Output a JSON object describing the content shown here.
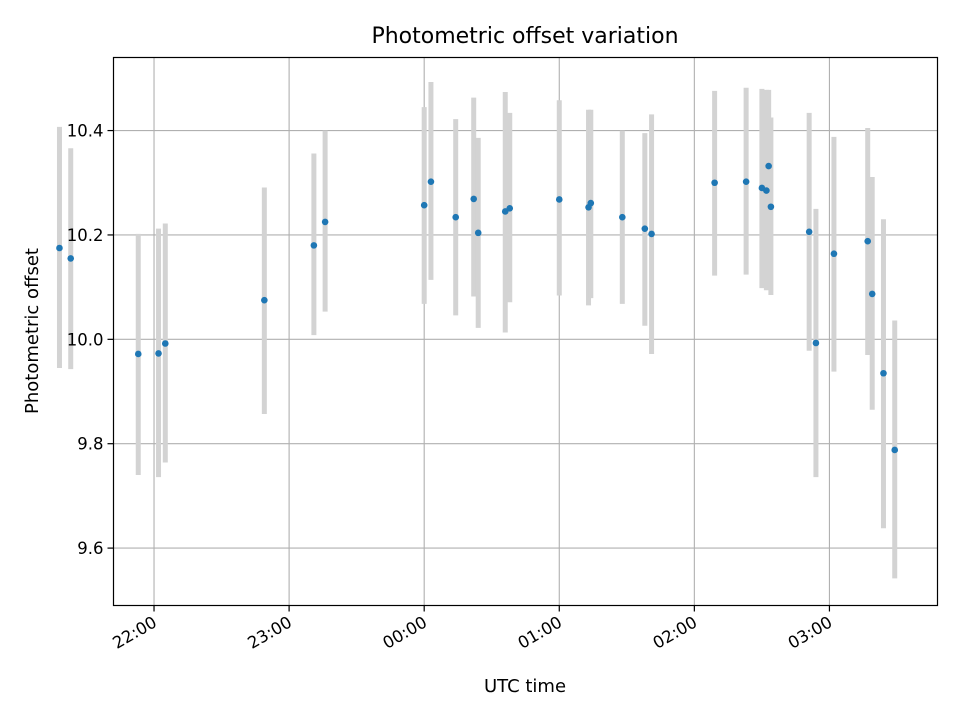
{
  "chart_data": {
    "type": "scatter",
    "title": "Photometric offset variation",
    "xlabel": "UTC time",
    "ylabel": "Photometric offset",
    "x_scale": "time",
    "x_range": [
      "21:42",
      "03:48"
    ],
    "xlim_min": [
      21.7,
      27.8
    ],
    "ylim": [
      9.49,
      10.54
    ],
    "x_ticks": [
      {
        "label": "22:00",
        "value": 22
      },
      {
        "label": "23:00",
        "value": 23
      },
      {
        "label": "00:00",
        "value": 24
      },
      {
        "label": "01:00",
        "value": 25
      },
      {
        "label": "02:00",
        "value": 26
      },
      {
        "label": "03:00",
        "value": 27
      }
    ],
    "y_ticks": [
      {
        "label": "9.6",
        "value": 9.6
      },
      {
        "label": "9.8",
        "value": 9.8
      },
      {
        "label": "10.0",
        "value": 10.0
      },
      {
        "label": "10.2",
        "value": 10.2
      },
      {
        "label": "10.4",
        "value": 10.4
      }
    ],
    "grid": true,
    "error_bar_color": "#d3d3d3",
    "point_color": "#1f77b4",
    "series": [
      {
        "x": [
          "21:18",
          "21:23",
          "21:53",
          "22:02",
          "22:05",
          "22:49",
          "23:11",
          "23:16",
          "00:00",
          "00:03",
          "00:14",
          "00:22",
          "00:24",
          "00:36",
          "00:38",
          "01:00",
          "01:13",
          "01:14",
          "01:28",
          "01:38",
          "01:41",
          "02:09",
          "02:23",
          "02:30",
          "02:32",
          "02:33",
          "02:34",
          "02:51",
          "02:54",
          "03:02",
          "03:17",
          "03:19",
          "03:24",
          "03:29"
        ],
        "y": [
          10.175,
          10.155,
          9.972,
          9.973,
          9.992,
          10.075,
          10.18,
          10.225,
          10.257,
          10.302,
          10.234,
          10.269,
          10.204,
          10.245,
          10.251,
          10.268,
          10.253,
          10.261,
          10.234,
          10.212,
          10.202,
          10.3,
          10.302,
          10.29,
          10.285,
          10.332,
          10.254,
          10.206,
          9.993,
          10.164,
          10.188,
          10.087,
          9.935,
          9.788
        ],
        "y_err_low": [
          9.945,
          9.943,
          9.74,
          9.736,
          9.764,
          9.857,
          10.008,
          10.053,
          10.068,
          10.114,
          10.046,
          10.082,
          10.022,
          10.013,
          10.071,
          10.084,
          10.065,
          10.079,
          10.068,
          10.026,
          9.972,
          10.122,
          10.124,
          10.098,
          10.094,
          10.183,
          10.085,
          9.978,
          9.736,
          9.938,
          9.97,
          9.865,
          9.638,
          9.542
        ],
        "y_err_high": [
          10.407,
          10.366,
          10.202,
          10.212,
          10.222,
          10.291,
          10.356,
          10.4,
          10.445,
          10.493,
          10.422,
          10.463,
          10.386,
          10.474,
          10.434,
          10.458,
          10.44,
          10.44,
          10.4,
          10.395,
          10.431,
          10.476,
          10.482,
          10.48,
          10.478,
          10.478,
          10.425,
          10.434,
          10.25,
          10.388,
          10.405,
          10.311,
          10.23,
          10.036
        ]
      }
    ]
  }
}
